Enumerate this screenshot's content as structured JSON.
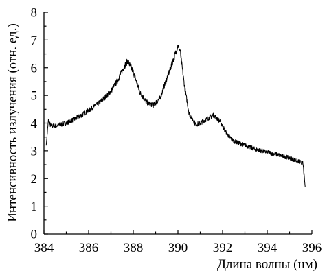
{
  "chart_data": {
    "type": "line",
    "xlabel": "Длина волны (нм)",
    "ylabel": "Интенсивность излучения (отн. ед.)",
    "xlim": [
      384,
      396
    ],
    "ylim": [
      0,
      8
    ],
    "xticks": [
      384,
      386,
      388,
      390,
      392,
      394,
      396
    ],
    "yticks": [
      0,
      1,
      2,
      3,
      4,
      5,
      6,
      7,
      8
    ],
    "grid": false,
    "series": [
      {
        "x": [
          384.1,
          384.2,
          384.3,
          384.5,
          385.0,
          385.5,
          386.0,
          386.5,
          387.0,
          387.3,
          387.6,
          387.75,
          388.0,
          388.3,
          388.6,
          388.9,
          389.2,
          389.5,
          389.8,
          390.0,
          390.1,
          390.3,
          390.5,
          390.8,
          391.0,
          391.3,
          391.6,
          391.9,
          392.2,
          392.5,
          393.0,
          393.5,
          394.0,
          394.5,
          395.0,
          395.3,
          395.6,
          395.7
        ],
        "values": [
          3.2,
          4.1,
          3.9,
          3.9,
          4.0,
          4.2,
          4.45,
          4.75,
          5.15,
          5.55,
          6.05,
          6.25,
          5.85,
          5.1,
          4.75,
          4.65,
          4.9,
          5.6,
          6.3,
          6.8,
          6.6,
          5.3,
          4.35,
          3.95,
          4.0,
          4.15,
          4.3,
          4.05,
          3.6,
          3.35,
          3.2,
          3.05,
          2.95,
          2.85,
          2.75,
          2.65,
          2.55,
          1.7
        ]
      }
    ]
  }
}
